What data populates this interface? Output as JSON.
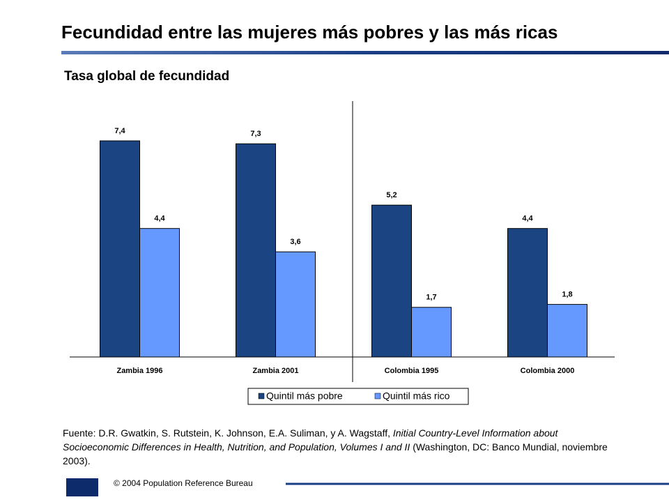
{
  "chart_data": {
    "type": "bar",
    "title": "Fecundidad entre las mujeres más pobres y las más ricas",
    "subtitle": "Tasa global de fecundidad",
    "categories": [
      "Zambia 1996",
      "Zambia 2001",
      "Colombia 1995",
      "Colombia 2000"
    ],
    "series": [
      {
        "name": "Quintil más pobre",
        "color": "#1b4582",
        "values": [
          7.4,
          7.3,
          5.2,
          4.4
        ],
        "value_labels": [
          "7,4",
          "7,3",
          "5,2",
          "4,4"
        ]
      },
      {
        "name": "Quintil más rico",
        "color": "#6699ff",
        "values": [
          4.4,
          3.6,
          1.7,
          1.8
        ],
        "value_labels": [
          "4,4",
          "3,6",
          "1,7",
          "1,8"
        ]
      }
    ],
    "ylim": [
      0,
      9
    ],
    "source": [
      "Fuente: D.R. Gwatkin, S. Rutstein, K. Johnson, E.A. Suliman, y A. Wagstaff, ",
      "Initial Country-Level Information about Socioeconomic Differences in Health, Nutrition, and Population, Volumes I and II",
      " (Washington, DC: Banco Mundial, noviembre 2003)."
    ],
    "footer": "© 2004 Population Reference Bureau"
  }
}
